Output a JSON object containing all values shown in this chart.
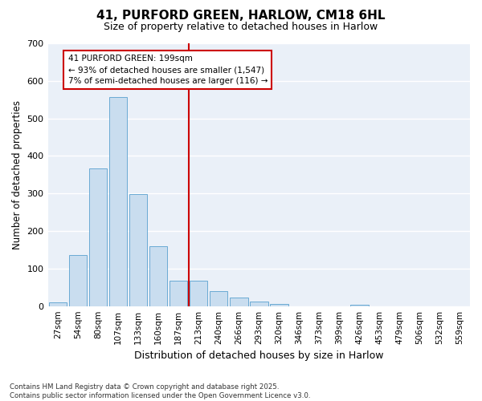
{
  "title": "41, PURFORD GREEN, HARLOW, CM18 6HL",
  "subtitle": "Size of property relative to detached houses in Harlow",
  "xlabel": "Distribution of detached houses by size in Harlow",
  "ylabel": "Number of detached properties",
  "bar_color": "#c9ddef",
  "bar_edge_color": "#6aaad4",
  "background_color": "#ffffff",
  "plot_bg_color": "#eaf0f8",
  "grid_color": "#ffffff",
  "bin_labels": [
    "27sqm",
    "54sqm",
    "80sqm",
    "107sqm",
    "133sqm",
    "160sqm",
    "187sqm",
    "213sqm",
    "240sqm",
    "266sqm",
    "293sqm",
    "320sqm",
    "346sqm",
    "373sqm",
    "399sqm",
    "426sqm",
    "453sqm",
    "479sqm",
    "506sqm",
    "532sqm",
    "559sqm"
  ],
  "bar_values": [
    10,
    135,
    367,
    557,
    298,
    160,
    68,
    68,
    40,
    22,
    13,
    5,
    0,
    0,
    0,
    3,
    0,
    0,
    0,
    0,
    0
  ],
  "vline_position": 7.0,
  "vline_color": "#cc0000",
  "annotation_text": "41 PURFORD GREEN: 199sqm\n← 93% of detached houses are smaller (1,547)\n7% of semi-detached houses are larger (116) →",
  "annotation_box_color": "#ffffff",
  "annotation_box_edge_color": "#cc0000",
  "ylim": [
    0,
    700
  ],
  "yticks": [
    0,
    100,
    200,
    300,
    400,
    500,
    600,
    700
  ],
  "footnote": "Contains HM Land Registry data © Crown copyright and database right 2025.\nContains public sector information licensed under the Open Government Licence v3.0.",
  "figsize": [
    6.0,
    5.0
  ],
  "dpi": 100
}
